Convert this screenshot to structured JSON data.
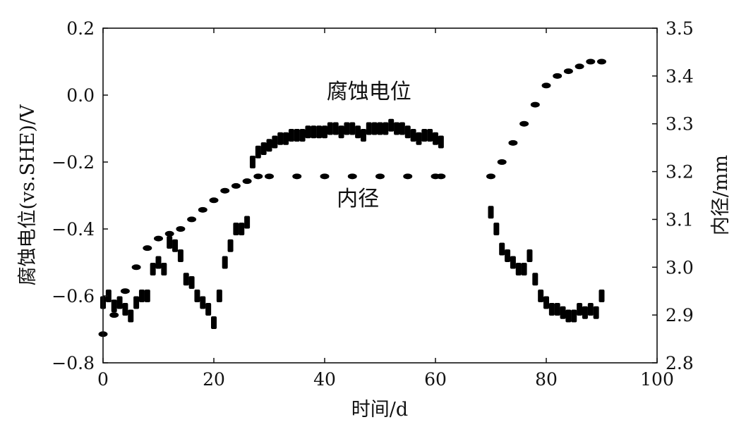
{
  "chart_data": {
    "type": "scatter",
    "title": "",
    "xlabel": "时间/d",
    "ylabel": "腐蚀电位(vs.SHE)/V",
    "y2label": "内径/mm",
    "xlim": [
      0,
      100
    ],
    "ylim": [
      -0.8,
      0.2
    ],
    "y2lim": [
      2.8,
      3.5
    ],
    "x_ticks": [
      "0",
      "20",
      "40",
      "60",
      "80",
      "100"
    ],
    "y_ticks": [
      "0.2",
      "0.0",
      "−0.2",
      "−0.4",
      "−0.6",
      "−0.8"
    ],
    "y2_ticks": [
      "3.5",
      "3.4",
      "3.3",
      "3.2",
      "3.1",
      "3.0",
      "2.9",
      "2.8"
    ],
    "grid": false,
    "legend": "none",
    "annotations": [
      {
        "text": "腐蚀电位",
        "x": 48,
        "y": -0.01
      },
      {
        "text": "内径",
        "x": 46,
        "y": -0.33
      }
    ],
    "marker_color": "#000000",
    "series": [
      {
        "name": "腐蚀电位",
        "axis": "left",
        "x": [
          0,
          1,
          2,
          3,
          4,
          5,
          6,
          7,
          8,
          9,
          10,
          11,
          12,
          13,
          14,
          15,
          16,
          17,
          18,
          19,
          20,
          21,
          22,
          23,
          24,
          25,
          26,
          27,
          28,
          29,
          30,
          31,
          32,
          33,
          34,
          35,
          36,
          37,
          38,
          39,
          40,
          41,
          42,
          43,
          44,
          45,
          46,
          47,
          48,
          49,
          50,
          51,
          52,
          53,
          54,
          55,
          56,
          57,
          58,
          59,
          60,
          61,
          70,
          71,
          72,
          73,
          74,
          75,
          76,
          77,
          78,
          79,
          80,
          81,
          82,
          83,
          84,
          85,
          86,
          87,
          88,
          89,
          90
        ],
        "y": [
          -0.62,
          -0.6,
          -0.63,
          -0.62,
          -0.64,
          -0.66,
          -0.62,
          -0.6,
          -0.6,
          -0.52,
          -0.5,
          -0.52,
          -0.44,
          -0.45,
          -0.48,
          -0.55,
          -0.56,
          -0.6,
          -0.62,
          -0.64,
          -0.68,
          -0.6,
          -0.5,
          -0.45,
          -0.4,
          -0.4,
          -0.38,
          -0.2,
          -0.17,
          -0.16,
          -0.15,
          -0.14,
          -0.13,
          -0.13,
          -0.12,
          -0.12,
          -0.12,
          -0.11,
          -0.11,
          -0.11,
          -0.11,
          -0.1,
          -0.1,
          -0.11,
          -0.1,
          -0.1,
          -0.11,
          -0.12,
          -0.1,
          -0.1,
          -0.1,
          -0.1,
          -0.09,
          -0.1,
          -0.1,
          -0.11,
          -0.12,
          -0.13,
          -0.12,
          -0.12,
          -0.13,
          -0.14,
          -0.35,
          -0.4,
          -0.46,
          -0.48,
          -0.5,
          -0.52,
          -0.52,
          -0.48,
          -0.55,
          -0.6,
          -0.62,
          -0.64,
          -0.64,
          -0.65,
          -0.66,
          -0.66,
          -0.64,
          -0.65,
          -0.64,
          -0.65,
          -0.6
        ]
      },
      {
        "name": "内径",
        "axis": "right",
        "x": [
          0,
          2,
          4,
          6,
          8,
          10,
          12,
          14,
          16,
          18,
          20,
          22,
          24,
          26,
          28,
          30,
          35,
          40,
          45,
          50,
          55,
          60,
          61,
          70,
          72,
          74,
          76,
          78,
          80,
          82,
          84,
          86,
          88,
          90
        ],
        "y": [
          2.86,
          2.9,
          2.95,
          3.0,
          3.04,
          3.06,
          3.07,
          3.08,
          3.1,
          3.12,
          3.14,
          3.16,
          3.17,
          3.18,
          3.19,
          3.19,
          3.19,
          3.19,
          3.19,
          3.19,
          3.19,
          3.19,
          3.19,
          3.19,
          3.22,
          3.26,
          3.3,
          3.34,
          3.38,
          3.4,
          3.41,
          3.42,
          3.43,
          3.43
        ]
      }
    ]
  }
}
